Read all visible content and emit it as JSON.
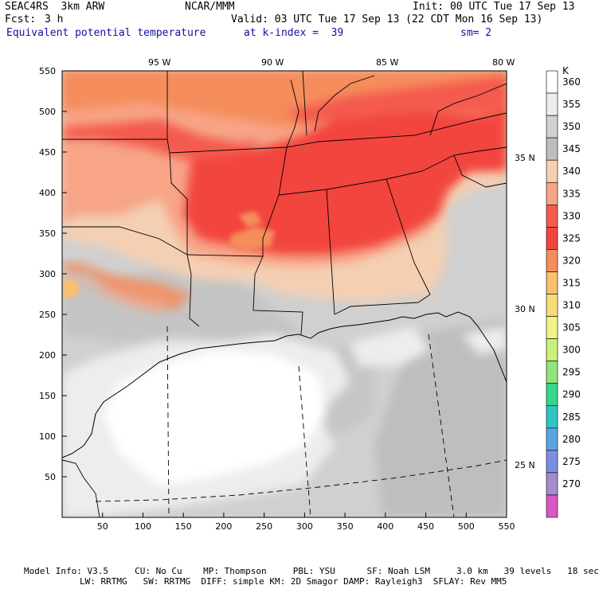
{
  "header": {
    "model": "SEAC4RS  3km ARW",
    "center": "NCAR/MMM",
    "init": "Init: 00 UTC Tue 17 Sep 13",
    "fcst_label": "Fcst:",
    "fcst_value": "3 h",
    "valid": "Valid: 03 UTC Tue 17 Sep 13 (22 CDT Mon 16 Sep 13)",
    "field": "Equivalent potential temperature",
    "level": "at k-index =  39",
    "smooth": "sm= 2"
  },
  "map": {
    "lon_labels": [
      "95 W",
      "90 W",
      "85 W",
      "80 W"
    ],
    "lat_labels": [
      "35 N",
      "30 N",
      "25 N"
    ],
    "x_ticks": [
      "50",
      "100",
      "150",
      "200",
      "250",
      "300",
      "350",
      "400",
      "450",
      "500",
      "550"
    ],
    "y_ticks": [
      "550",
      "500",
      "450",
      "400",
      "350",
      "300",
      "250",
      "200",
      "150",
      "100",
      "50"
    ]
  },
  "colorbar": {
    "unit": "K",
    "levels": [
      "360",
      "355",
      "350",
      "345",
      "340",
      "335",
      "330",
      "325",
      "320",
      "315",
      "310",
      "305",
      "300",
      "295",
      "290",
      "285",
      "280",
      "275",
      "270"
    ],
    "colors": [
      "#ffffff",
      "#ededed",
      "#d0d0d0",
      "#bebebe",
      "#f4cfb2",
      "#f7a487",
      "#f45a4e",
      "#f2453c",
      "#f58d5c",
      "#f9c06e",
      "#f8dc7a",
      "#f3f38a",
      "#c9f07a",
      "#8fe47b",
      "#38d58e",
      "#2ec6c3",
      "#5ba3e3",
      "#7c8ee2",
      "#a58ad2",
      "#d757c6"
    ]
  },
  "footer": {
    "line1": "Model Info: V3.5     CU: No Cu    MP: Thompson     PBL: YSU      SF: Noah LSM     3.0 km   39 levels   18 sec",
    "line2": "LW: RRTMG   SW: RRTMG  DIFF: simple KM: 2D Smagor DAMP: Rayleigh3  SFLAY: Rev MM5"
  }
}
